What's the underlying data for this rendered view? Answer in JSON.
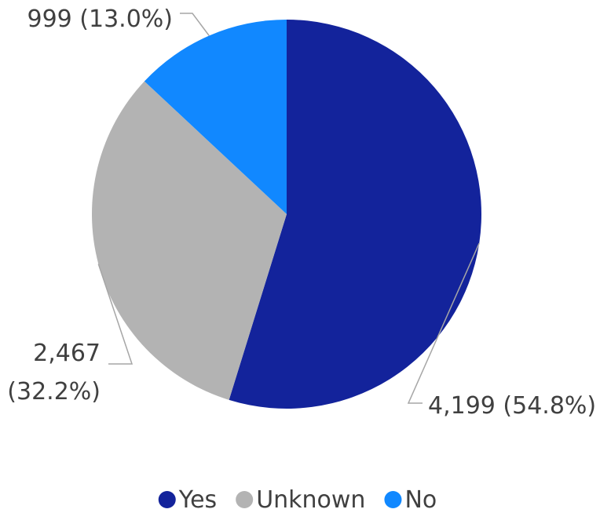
{
  "chart_data": {
    "type": "pie",
    "title": "",
    "slices": [
      {
        "name": "Yes",
        "value": 4199,
        "label_value": "4,199",
        "label_pct": "(54.8%)",
        "color": "#13239b"
      },
      {
        "name": "Unknown",
        "value": 2467,
        "label_value": "2,467",
        "label_pct": "(32.2%)",
        "color": "#b3b3b3"
      },
      {
        "name": "No",
        "value": 999,
        "label_value": "999",
        "label_pct": "(13.0%)",
        "color": "#1188ff"
      }
    ],
    "start_angle_deg": 0,
    "direction": "clockwise",
    "legend": {
      "position": "bottom",
      "items": [
        "Yes",
        "Unknown",
        "No"
      ]
    },
    "data_labels": true,
    "leader_lines": true
  }
}
